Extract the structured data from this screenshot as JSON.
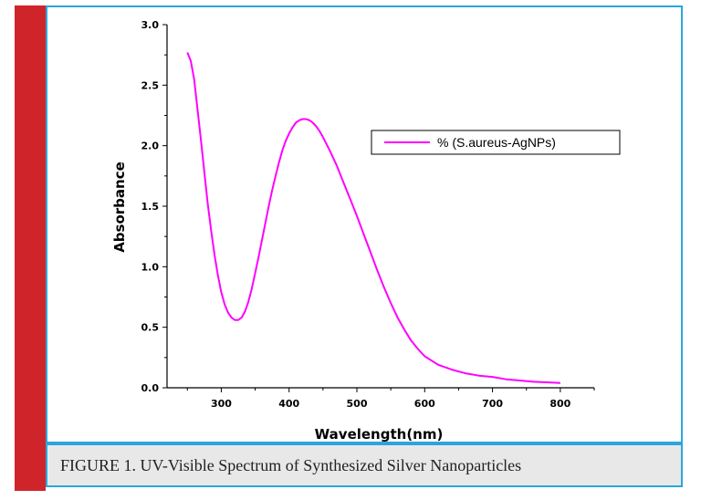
{
  "caption": "FIGURE 1. UV-Visible Spectrum of Synthesized Silver Nanoparticles",
  "chart_data": {
    "type": "line",
    "title": "",
    "xlabel": "Wavelength(nm)",
    "ylabel": "Absorbance",
    "xlim": [
      220,
      850
    ],
    "ylim": [
      0.0,
      3.0
    ],
    "xticks": [
      300,
      400,
      500,
      600,
      700,
      800
    ],
    "yticks": [
      0.0,
      0.5,
      1.0,
      1.5,
      2.0,
      2.5,
      3.0
    ],
    "xtick_labels": [
      "300",
      "400",
      "500",
      "600",
      "700",
      "800"
    ],
    "ytick_labels": [
      "0.0",
      "0.5",
      "1.0",
      "1.5",
      "2.0",
      "2.5",
      "3.0"
    ],
    "grid": false,
    "legend_position": "top-right",
    "series": [
      {
        "name": "% (S.aureus-AgNPs)",
        "color": "#ff00ff",
        "x": [
          250,
          255,
          260,
          265,
          270,
          275,
          280,
          285,
          290,
          295,
          300,
          305,
          310,
          315,
          320,
          325,
          330,
          335,
          340,
          345,
          350,
          355,
          360,
          365,
          370,
          375,
          380,
          385,
          390,
          395,
          400,
          405,
          410,
          415,
          420,
          425,
          430,
          435,
          440,
          445,
          450,
          460,
          470,
          480,
          490,
          500,
          510,
          520,
          530,
          540,
          550,
          560,
          570,
          580,
          590,
          600,
          620,
          640,
          660,
          680,
          700,
          720,
          740,
          760,
          780,
          800
        ],
        "y": [
          2.77,
          2.7,
          2.55,
          2.3,
          2.05,
          1.78,
          1.52,
          1.3,
          1.1,
          0.93,
          0.79,
          0.69,
          0.62,
          0.58,
          0.56,
          0.56,
          0.58,
          0.63,
          0.71,
          0.82,
          0.95,
          1.08,
          1.22,
          1.36,
          1.5,
          1.63,
          1.75,
          1.86,
          1.96,
          2.04,
          2.1,
          2.15,
          2.19,
          2.21,
          2.22,
          2.22,
          2.21,
          2.19,
          2.16,
          2.12,
          2.07,
          1.96,
          1.84,
          1.7,
          1.56,
          1.42,
          1.27,
          1.12,
          0.97,
          0.83,
          0.7,
          0.58,
          0.48,
          0.39,
          0.32,
          0.26,
          0.19,
          0.15,
          0.12,
          0.1,
          0.09,
          0.07,
          0.06,
          0.05,
          0.045,
          0.04
        ]
      }
    ]
  }
}
